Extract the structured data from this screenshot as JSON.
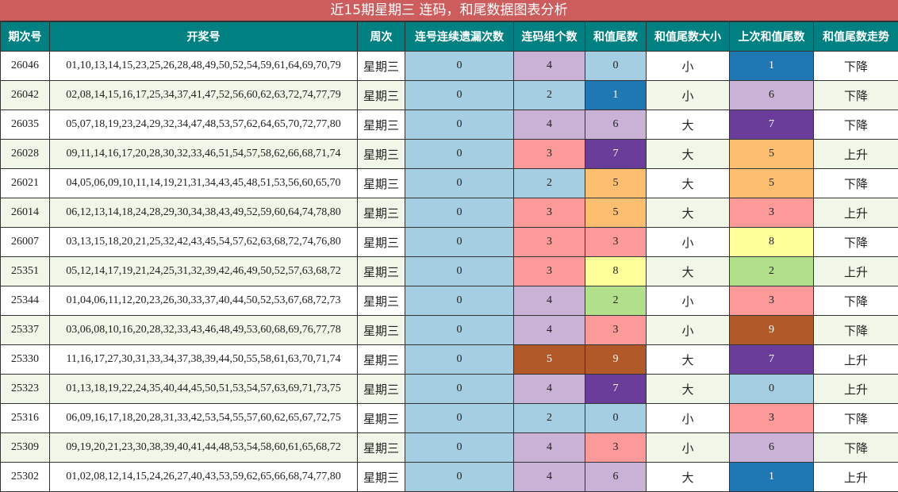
{
  "title": "近15期星期三 连码，和尾数据图表分析",
  "headers": [
    "期次号",
    "开奖号",
    "周次",
    "连号连续遗漏次数",
    "连码组个数",
    "和值尾数",
    "和值尾数大小",
    "上次和值尾数",
    "和值尾数走势"
  ],
  "colors": {
    "header_bg": "#008080",
    "title_bg": "#cd5c5c",
    "alt_row_bg": "#f0f6e8",
    "miss_bg": "#a6cee3",
    "count_palette": {
      "2": "#a6cee3",
      "3": "#fb9a99",
      "4": "#cab2d6",
      "5": "#b15928"
    },
    "tail_palette": {
      "0": "#a6cee3",
      "1": "#1f78b4",
      "2": "#b2df8a",
      "3": "#fb9a99",
      "4": "#cab2d6",
      "5": "#fdbf6f",
      "6": "#cab2d6",
      "7": "#6a3d9a",
      "8": "#ffff99",
      "9": "#b15928"
    },
    "dark_values": [
      "#1f78b4",
      "#6a3d9a",
      "#b15928"
    ]
  },
  "rows": [
    {
      "period": "26046",
      "numbers": "01,10,13,14,15,23,25,26,28,48,49,50,52,54,59,61,64,69,70,79",
      "weekday": "星期三",
      "miss": "0",
      "count": "4",
      "tail": "0",
      "size": "小",
      "prev_tail": "1",
      "trend": "下降"
    },
    {
      "period": "26042",
      "numbers": "02,08,14,15,16,17,25,34,37,41,47,52,56,60,62,63,72,74,77,79",
      "weekday": "星期三",
      "miss": "0",
      "count": "2",
      "tail": "1",
      "size": "小",
      "prev_tail": "6",
      "trend": "下降"
    },
    {
      "period": "26035",
      "numbers": "05,07,18,19,23,24,29,32,34,47,48,53,57,62,64,65,70,72,77,80",
      "weekday": "星期三",
      "miss": "0",
      "count": "4",
      "tail": "6",
      "size": "大",
      "prev_tail": "7",
      "trend": "下降"
    },
    {
      "period": "26028",
      "numbers": "09,11,14,16,17,20,28,30,32,33,46,51,54,57,58,62,66,68,71,74",
      "weekday": "星期三",
      "miss": "0",
      "count": "3",
      "tail": "7",
      "size": "大",
      "prev_tail": "5",
      "trend": "上升"
    },
    {
      "period": "26021",
      "numbers": "04,05,06,09,10,11,14,19,21,31,34,43,45,48,51,53,56,60,65,70",
      "weekday": "星期三",
      "miss": "0",
      "count": "2",
      "tail": "5",
      "size": "大",
      "prev_tail": "5",
      "trend": "下降"
    },
    {
      "period": "26014",
      "numbers": "06,12,13,14,18,24,28,29,30,34,38,43,49,52,59,60,64,74,78,80",
      "weekday": "星期三",
      "miss": "0",
      "count": "3",
      "tail": "5",
      "size": "大",
      "prev_tail": "3",
      "trend": "上升"
    },
    {
      "period": "26007",
      "numbers": "03,13,15,18,20,21,25,32,42,43,45,54,57,62,63,68,72,74,76,80",
      "weekday": "星期三",
      "miss": "0",
      "count": "3",
      "tail": "3",
      "size": "小",
      "prev_tail": "8",
      "trend": "下降"
    },
    {
      "period": "25351",
      "numbers": "05,12,14,17,19,21,24,25,31,32,39,42,46,49,50,52,57,63,68,72",
      "weekday": "星期三",
      "miss": "0",
      "count": "3",
      "tail": "8",
      "size": "大",
      "prev_tail": "2",
      "trend": "上升"
    },
    {
      "period": "25344",
      "numbers": "01,04,06,11,12,20,23,26,30,33,37,40,44,50,52,53,67,68,72,73",
      "weekday": "星期三",
      "miss": "0",
      "count": "4",
      "tail": "2",
      "size": "小",
      "prev_tail": "3",
      "trend": "下降"
    },
    {
      "period": "25337",
      "numbers": "03,06,08,10,16,20,28,32,33,43,46,48,49,53,60,68,69,76,77,78",
      "weekday": "星期三",
      "miss": "0",
      "count": "4",
      "tail": "3",
      "size": "小",
      "prev_tail": "9",
      "trend": "下降"
    },
    {
      "period": "25330",
      "numbers": "11,16,17,27,30,31,33,34,37,38,39,44,50,55,58,61,63,70,71,74",
      "weekday": "星期三",
      "miss": "0",
      "count": "5",
      "tail": "9",
      "size": "大",
      "prev_tail": "7",
      "trend": "上升"
    },
    {
      "period": "25323",
      "numbers": "01,13,18,19,22,24,35,40,44,45,50,51,53,54,57,63,69,71,73,75",
      "weekday": "星期三",
      "miss": "0",
      "count": "4",
      "tail": "7",
      "size": "大",
      "prev_tail": "0",
      "trend": "上升"
    },
    {
      "period": "25316",
      "numbers": "06,09,16,17,18,20,28,31,33,42,53,54,55,57,60,62,65,67,72,75",
      "weekday": "星期三",
      "miss": "0",
      "count": "2",
      "tail": "0",
      "size": "小",
      "prev_tail": "3",
      "trend": "下降"
    },
    {
      "period": "25309",
      "numbers": "09,19,20,21,23,30,38,39,40,41,44,48,53,54,58,60,61,65,68,72",
      "weekday": "星期三",
      "miss": "0",
      "count": "4",
      "tail": "3",
      "size": "小",
      "prev_tail": "6",
      "trend": "下降"
    },
    {
      "period": "25302",
      "numbers": "01,02,08,12,14,15,24,26,27,40,43,53,59,62,65,66,68,74,77,80",
      "weekday": "星期三",
      "miss": "0",
      "count": "4",
      "tail": "6",
      "size": "大",
      "prev_tail": "1",
      "trend": "上升"
    }
  ]
}
